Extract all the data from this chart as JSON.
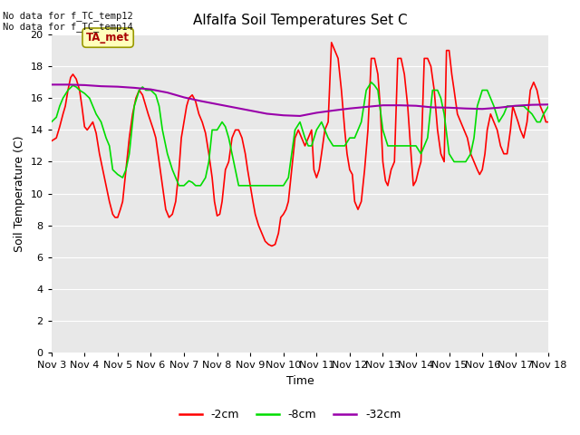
{
  "title": "Alfalfa Soil Temperatures Set C",
  "xlabel": "Time",
  "ylabel": "Soil Temperature (C)",
  "bg_color": "#e8e8e8",
  "fig_bg": "#ffffff",
  "ylim": [
    0,
    20
  ],
  "yticks": [
    0,
    2,
    4,
    6,
    8,
    10,
    12,
    14,
    16,
    18,
    20
  ],
  "xtick_labels": [
    "Nov 3",
    "Nov 4",
    "Nov 5",
    "Nov 6",
    "Nov 7",
    "Nov 8",
    "Nov 9",
    "Nov 10",
    "Nov 11",
    "Nov 12",
    "Nov 13",
    "Nov 14",
    "Nov 15",
    "Nov 16",
    "Nov 17",
    "Nov 18"
  ],
  "top_left_text": "No data for f_TC_temp12\nNo data for f_TC_temp14",
  "annotation_box": "TA_met",
  "line_2cm_color": "#ff0000",
  "line_8cm_color": "#00dd00",
  "line_32cm_color": "#9900aa",
  "legend_labels": [
    "-2cm",
    "-8cm",
    "-32cm"
  ],
  "legend_colors": [
    "#ff0000",
    "#00dd00",
    "#9900aa"
  ],
  "x_2cm": [
    0.0,
    0.15,
    0.25,
    0.35,
    0.42,
    0.5,
    0.58,
    0.65,
    0.75,
    0.85,
    0.92,
    1.0,
    1.08,
    1.15,
    1.25,
    1.35,
    1.45,
    1.55,
    1.65,
    1.75,
    1.85,
    1.92,
    2.0,
    2.08,
    2.15,
    2.25,
    2.35,
    2.45,
    2.55,
    2.65,
    2.75,
    2.85,
    2.92,
    3.0,
    3.08,
    3.15,
    3.25,
    3.35,
    3.45,
    3.55,
    3.65,
    3.75,
    3.85,
    3.92,
    4.0,
    4.08,
    4.15,
    4.25,
    4.35,
    4.45,
    4.55,
    4.65,
    4.75,
    4.85,
    4.92,
    5.0,
    5.08,
    5.15,
    5.25,
    5.35,
    5.45,
    5.55,
    5.65,
    5.75,
    5.85,
    5.92,
    6.0,
    6.08,
    6.15,
    6.25,
    6.35,
    6.45,
    6.55,
    6.65,
    6.75,
    6.85,
    6.92,
    7.0,
    7.08,
    7.15,
    7.25,
    7.35,
    7.45,
    7.55,
    7.65,
    7.75,
    7.85,
    7.92,
    8.0,
    8.08,
    8.15,
    8.25,
    8.35,
    8.45,
    8.55,
    8.65,
    8.75,
    8.85,
    8.92,
    9.0,
    9.08,
    9.15,
    9.25,
    9.35,
    9.45,
    9.55,
    9.65,
    9.75,
    9.85,
    9.92,
    10.0,
    10.08,
    10.15,
    10.25,
    10.35,
    10.45,
    10.55,
    10.65,
    10.75,
    10.85,
    10.92,
    11.0,
    11.08,
    11.15,
    11.25,
    11.35,
    11.45,
    11.55,
    11.65,
    11.75,
    11.85,
    11.92,
    12.0,
    12.08,
    12.15,
    12.25,
    12.35,
    12.45,
    12.55,
    12.65,
    12.75,
    12.85,
    12.92,
    13.0,
    13.08,
    13.15,
    13.25,
    13.35,
    13.45,
    13.55,
    13.65,
    13.75,
    13.85,
    13.92,
    14.0,
    14.08,
    14.15,
    14.25,
    14.35,
    14.45,
    14.55,
    14.65,
    14.75,
    14.85,
    14.92,
    15.0
  ],
  "y_2cm": [
    13.3,
    13.5,
    14.2,
    15.0,
    15.5,
    16.5,
    17.3,
    17.5,
    17.2,
    16.5,
    15.5,
    14.2,
    14.0,
    14.2,
    14.5,
    13.8,
    12.5,
    11.5,
    10.5,
    9.5,
    8.7,
    8.5,
    8.5,
    9.0,
    9.5,
    11.5,
    13.5,
    15.0,
    16.0,
    16.5,
    16.2,
    15.5,
    15.0,
    14.5,
    14.0,
    13.5,
    12.0,
    10.5,
    9.0,
    8.5,
    8.7,
    9.5,
    11.5,
    13.5,
    14.5,
    15.5,
    16.0,
    16.2,
    15.8,
    15.0,
    14.5,
    13.8,
    12.5,
    11.0,
    9.5,
    8.6,
    8.7,
    9.5,
    11.5,
    12.0,
    13.5,
    14.0,
    14.0,
    13.5,
    12.5,
    11.5,
    10.5,
    9.5,
    8.7,
    8.0,
    7.5,
    7.0,
    6.8,
    6.7,
    6.8,
    7.5,
    8.5,
    8.7,
    9.0,
    9.5,
    11.5,
    13.5,
    14.0,
    13.5,
    13.0,
    13.5,
    14.0,
    11.5,
    11.0,
    11.5,
    12.5,
    14.0,
    14.5,
    19.5,
    19.0,
    18.5,
    16.5,
    14.0,
    12.5,
    11.5,
    11.2,
    9.5,
    9.0,
    9.5,
    11.5,
    14.0,
    18.5,
    18.5,
    17.5,
    15.5,
    12.0,
    10.8,
    10.5,
    11.5,
    12.0,
    18.5,
    18.5,
    17.5,
    15.5,
    12.5,
    10.5,
    10.8,
    11.5,
    12.0,
    18.5,
    18.5,
    18.0,
    16.5,
    14.0,
    12.5,
    12.0,
    19.0,
    19.0,
    17.5,
    16.5,
    15.0,
    14.5,
    14.0,
    13.5,
    12.5,
    12.0,
    11.5,
    11.2,
    11.5,
    12.5,
    14.0,
    15.0,
    14.5,
    14.0,
    13.0,
    12.5,
    12.5,
    14.0,
    15.5,
    15.0,
    14.5,
    14.0,
    13.5,
    14.5,
    16.5,
    17.0,
    16.5,
    15.5,
    15.0,
    14.5,
    14.5
  ],
  "x_8cm": [
    0.0,
    0.15,
    0.25,
    0.35,
    0.5,
    0.65,
    0.75,
    0.85,
    1.0,
    1.15,
    1.25,
    1.35,
    1.5,
    1.65,
    1.75,
    1.85,
    2.0,
    2.15,
    2.25,
    2.35,
    2.5,
    2.65,
    2.75,
    2.85,
    3.0,
    3.15,
    3.25,
    3.35,
    3.5,
    3.65,
    3.75,
    3.85,
    4.0,
    4.15,
    4.25,
    4.35,
    4.5,
    4.65,
    4.75,
    4.85,
    5.0,
    5.15,
    5.25,
    5.35,
    5.5,
    5.65,
    5.75,
    5.85,
    6.0,
    6.15,
    6.25,
    6.35,
    6.5,
    6.65,
    6.75,
    6.85,
    7.0,
    7.15,
    7.25,
    7.35,
    7.5,
    7.65,
    7.75,
    7.85,
    8.0,
    8.15,
    8.25,
    8.35,
    8.5,
    8.65,
    8.75,
    8.85,
    9.0,
    9.15,
    9.25,
    9.35,
    9.5,
    9.65,
    9.75,
    9.85,
    10.0,
    10.15,
    10.25,
    10.35,
    10.5,
    10.65,
    10.75,
    10.85,
    11.0,
    11.15,
    11.25,
    11.35,
    11.5,
    11.65,
    11.75,
    11.85,
    12.0,
    12.15,
    12.25,
    12.35,
    12.5,
    12.65,
    12.75,
    12.85,
    13.0,
    13.15,
    13.25,
    13.35,
    13.5,
    13.65,
    13.75,
    13.85,
    14.0,
    14.15,
    14.25,
    14.35,
    14.5,
    14.65,
    14.75,
    14.85,
    15.0
  ],
  "y_8cm": [
    14.5,
    14.8,
    15.5,
    16.0,
    16.5,
    16.8,
    16.7,
    16.5,
    16.3,
    16.0,
    15.5,
    15.0,
    14.5,
    13.5,
    13.0,
    11.5,
    11.2,
    11.0,
    11.5,
    12.5,
    15.5,
    16.5,
    16.7,
    16.5,
    16.5,
    16.2,
    15.5,
    14.0,
    12.5,
    11.5,
    11.0,
    10.5,
    10.5,
    10.8,
    10.7,
    10.5,
    10.5,
    11.0,
    12.0,
    14.0,
    14.0,
    14.5,
    14.2,
    13.5,
    12.0,
    10.5,
    10.5,
    10.5,
    10.5,
    10.5,
    10.5,
    10.5,
    10.5,
    10.5,
    10.5,
    10.5,
    10.5,
    11.0,
    12.5,
    14.0,
    14.5,
    13.5,
    13.0,
    13.0,
    14.0,
    14.5,
    14.0,
    13.5,
    13.0,
    13.0,
    13.0,
    13.0,
    13.5,
    13.5,
    14.0,
    14.5,
    16.5,
    17.0,
    16.8,
    16.5,
    14.0,
    13.0,
    13.0,
    13.0,
    13.0,
    13.0,
    13.0,
    13.0,
    13.0,
    12.5,
    13.0,
    13.5,
    16.5,
    16.5,
    16.0,
    15.0,
    12.5,
    12.0,
    12.0,
    12.0,
    12.0,
    12.5,
    13.5,
    15.5,
    16.5,
    16.5,
    16.0,
    15.5,
    14.5,
    15.0,
    15.5,
    15.5,
    15.5,
    15.5,
    15.5,
    15.3,
    15.0,
    14.5,
    14.5,
    15.0,
    15.5
  ],
  "x_32cm": [
    0.0,
    0.5,
    1.0,
    1.5,
    2.0,
    2.5,
    3.0,
    3.5,
    4.0,
    4.5,
    5.0,
    5.5,
    6.0,
    6.5,
    7.0,
    7.5,
    8.0,
    8.5,
    9.0,
    9.5,
    10.0,
    10.5,
    11.0,
    11.5,
    12.0,
    12.5,
    13.0,
    13.5,
    14.0,
    14.5,
    15.0
  ],
  "y_32cm": [
    16.85,
    16.85,
    16.82,
    16.75,
    16.72,
    16.65,
    16.55,
    16.35,
    16.05,
    15.82,
    15.62,
    15.42,
    15.22,
    15.02,
    14.92,
    14.88,
    15.08,
    15.22,
    15.35,
    15.45,
    15.55,
    15.55,
    15.52,
    15.42,
    15.4,
    15.35,
    15.32,
    15.4,
    15.52,
    15.58,
    15.6
  ]
}
